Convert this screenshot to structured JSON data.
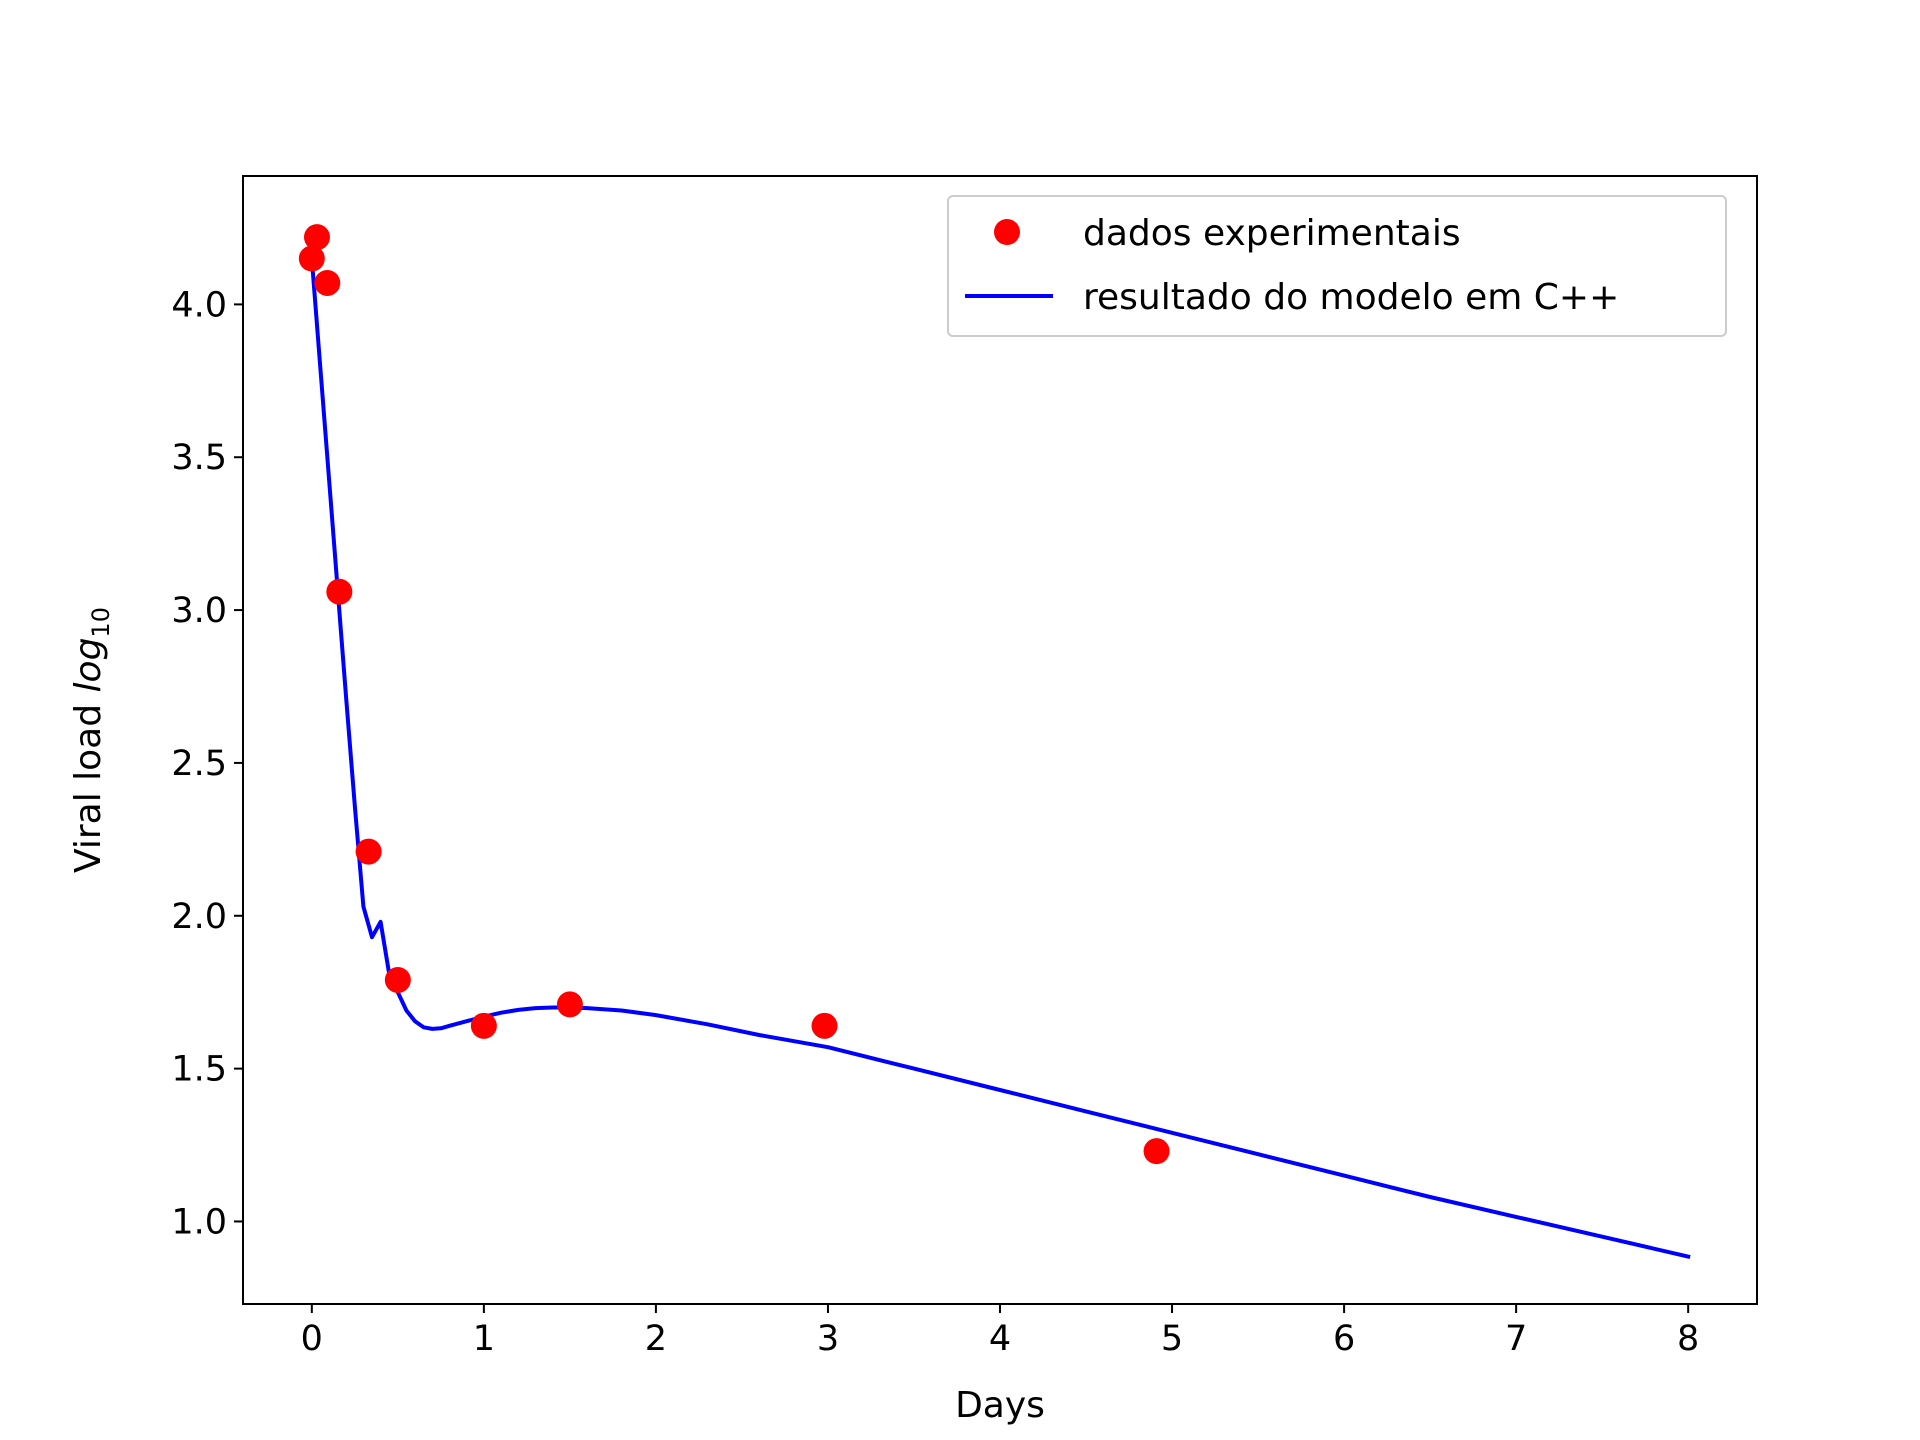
{
  "chart_data": {
    "type": "line",
    "xlabel": "Days",
    "ylabel": {
      "prefix": "Viral load ",
      "math": "log",
      "subscript": "10"
    },
    "xlim": [
      -0.4,
      8.4
    ],
    "ylim": [
      0.73,
      4.42
    ],
    "grid": false,
    "legend_position": "top-right",
    "x_ticks": [
      0,
      1,
      2,
      3,
      4,
      5,
      6,
      7,
      8
    ],
    "x_tick_labels": [
      "0",
      "1",
      "2",
      "3",
      "4",
      "5",
      "6",
      "7",
      "8"
    ],
    "y_ticks": [
      1.0,
      1.5,
      2.0,
      2.5,
      3.0,
      3.5,
      4.0
    ],
    "y_tick_labels": [
      "1.0",
      "1.5",
      "2.0",
      "2.5",
      "3.0",
      "3.5",
      "4.0"
    ],
    "series": [
      {
        "name": "dados experimentais",
        "kind": "scatter",
        "color": "#ff0000",
        "x": [
          0.0,
          0.03,
          0.09,
          0.16,
          0.33,
          0.5,
          1.0,
          1.5,
          2.98,
          4.91
        ],
        "y": [
          4.15,
          4.22,
          4.07,
          3.06,
          2.21,
          1.79,
          1.64,
          1.71,
          1.64,
          1.23
        ]
      },
      {
        "name": "resultado do modelo em C++",
        "kind": "line",
        "color": "#0000ff",
        "x": [
          0.0,
          0.05,
          0.1,
          0.15,
          0.2,
          0.25,
          0.3,
          0.35,
          0.4,
          0.45,
          0.5,
          0.55,
          0.6,
          0.65,
          0.7,
          0.75,
          0.8,
          0.9,
          1.0,
          1.1,
          1.2,
          1.3,
          1.4,
          1.5,
          1.6,
          1.8,
          2.0,
          2.3,
          2.6,
          3.0,
          3.5,
          4.0,
          4.5,
          5.0,
          5.5,
          6.0,
          6.5,
          7.0,
          7.5,
          8.0
        ],
        "y": [
          4.15,
          3.79,
          3.43,
          3.07,
          2.71,
          2.36,
          2.03,
          1.93,
          1.98,
          1.81,
          1.75,
          1.69,
          1.655,
          1.635,
          1.63,
          1.632,
          1.64,
          1.655,
          1.67,
          1.683,
          1.692,
          1.698,
          1.7,
          1.7,
          1.698,
          1.69,
          1.675,
          1.645,
          1.61,
          1.57,
          1.5,
          1.43,
          1.36,
          1.29,
          1.22,
          1.15,
          1.08,
          1.015,
          0.95,
          0.885
        ]
      }
    ]
  }
}
